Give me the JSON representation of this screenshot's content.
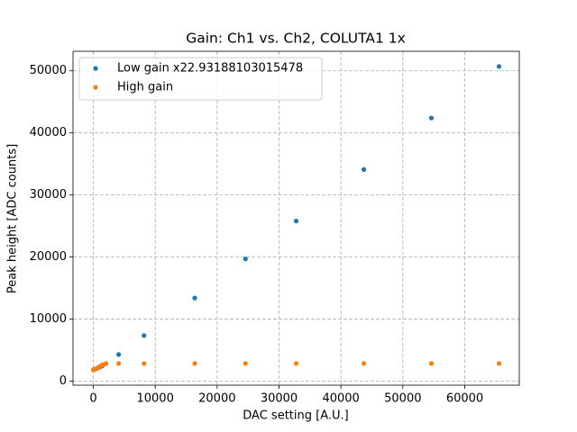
{
  "chart_data": {
    "type": "scatter",
    "title": "Gain: Ch1 vs. Ch2, COLUTA1 1x",
    "xlabel": "DAC setting [A.U.]",
    "ylabel": "Peak height [ADC counts]",
    "x": [
      0,
      100,
      200,
      400,
      600,
      800,
      1000,
      1200,
      1500,
      2048,
      4096,
      8192,
      16384,
      24576,
      32768,
      43690,
      54613,
      65535
    ],
    "series": [
      {
        "name": "Low gain x22.93188103015478",
        "color": "#1f77b4",
        "values": [
          1850,
          1880,
          1920,
          1980,
          2050,
          2150,
          2250,
          2350,
          2500,
          2800,
          4300,
          7350,
          13400,
          19700,
          25800,
          34100,
          42400,
          50700
        ]
      },
      {
        "name": "High gain",
        "color": "#ff7f0e",
        "values": [
          1850,
          1880,
          1920,
          1990,
          2080,
          2200,
          2330,
          2480,
          2650,
          2850,
          2850,
          2850,
          2850,
          2850,
          2850,
          2850,
          2850,
          2850
        ]
      }
    ],
    "xlim": [
      -3277,
      68812
    ],
    "ylim": [
      -650,
      53150
    ],
    "xticks": [
      0,
      10000,
      20000,
      30000,
      40000,
      50000,
      60000
    ],
    "yticks": [
      0,
      10000,
      20000,
      30000,
      40000,
      50000
    ],
    "grid": true,
    "legend": "upper-left"
  }
}
